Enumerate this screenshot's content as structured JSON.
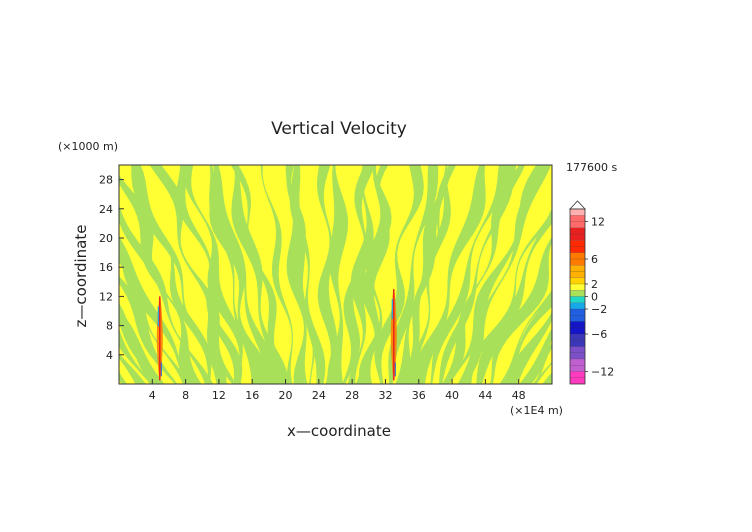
{
  "chart_data": {
    "type": "heatmap",
    "title": "Vertical Velocity",
    "xlabel": "x—coordinate",
    "ylabel": "z—coordinate",
    "x_unit": "(×1E4 m)",
    "y_unit": "(×1000 m)",
    "time_label": "177600 s",
    "xlim": [
      0,
      52
    ],
    "ylim": [
      0,
      30
    ],
    "x_ticks": [
      4,
      8,
      12,
      16,
      20,
      24,
      28,
      32,
      36,
      40,
      44,
      48
    ],
    "y_ticks": [
      4,
      8,
      12,
      16,
      20,
      24,
      28
    ],
    "colorbar": {
      "range": [
        -14,
        14
      ],
      "tick_values": [
        12,
        6,
        2,
        0,
        -2,
        -6,
        -12
      ],
      "tick_labels": [
        "12",
        "6",
        "2",
        "0",
        "−2",
        "−6",
        "−12"
      ],
      "colors": {
        "n14": "#ff3bbf",
        "n12": "#c060d0",
        "n10": "#7a4fc8",
        "n8": "#3c36b8",
        "n6": "#1414c8",
        "n4": "#1f5fe0",
        "n2": "#18a8ea",
        "n1": "#20d8c8",
        "zero": "#a8e05a",
        "p1": "#ffff33",
        "p2": "#ffd200",
        "p3": "#ffb000",
        "p5": "#ff7a00",
        "p7": "#ff2a00",
        "p9": "#e82020",
        "p11": "#ff6a6a",
        "p13": "#ffb0b0"
      },
      "overflow_color": "#ffffff"
    },
    "features": [
      {
        "label": "updraft column",
        "x": 4.9,
        "z_range": [
          0.5,
          12
        ]
      },
      {
        "label": "updraft column",
        "x": 33.0,
        "z_range": [
          0.5,
          13
        ]
      }
    ],
    "field_colors": {
      "positive": "#ffff33",
      "negative": "#a8e05a"
    }
  }
}
